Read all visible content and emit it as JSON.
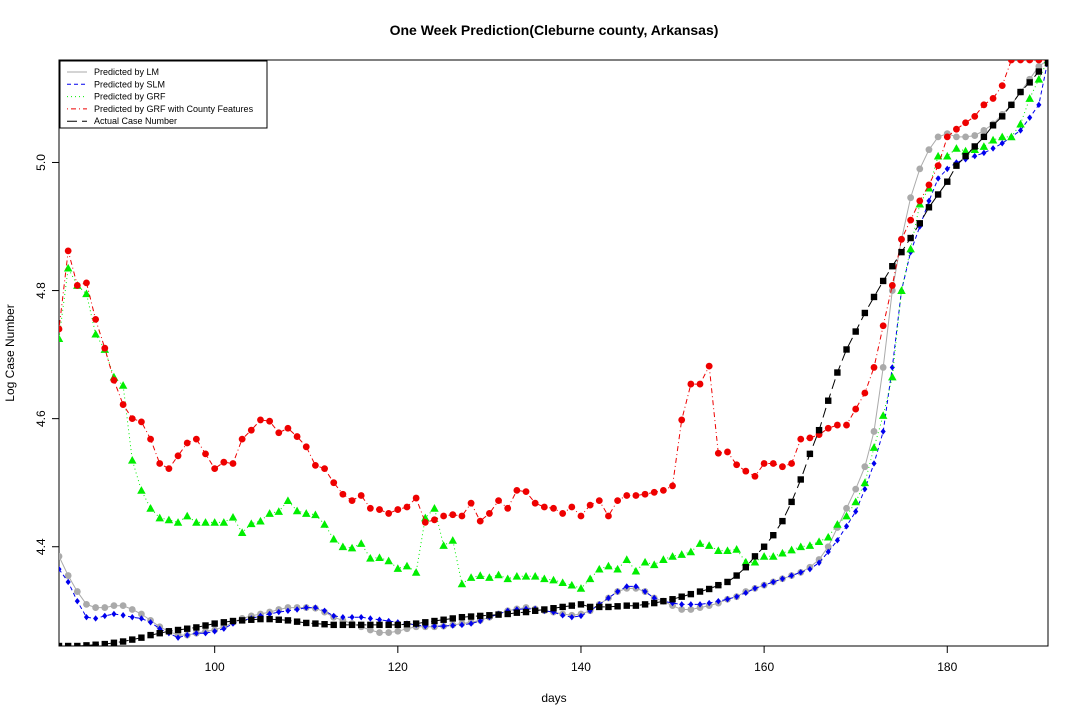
{
  "chart_data": {
    "type": "line",
    "title": "One Week Prediction(Cleburne county, Arkansas)",
    "xlabel": "days",
    "ylabel": "Log Case Number",
    "xlim": [
      83,
      191
    ],
    "ylim": [
      4.245,
      5.16
    ],
    "x_ticks": [
      100,
      120,
      140,
      160,
      180
    ],
    "y_ticks": [
      4.4,
      4.6,
      4.8,
      5.0
    ],
    "grid": false,
    "legend_position": "top-left",
    "x": [
      83,
      84,
      85,
      86,
      87,
      88,
      89,
      90,
      91,
      92,
      93,
      94,
      95,
      96,
      97,
      98,
      99,
      100,
      101,
      102,
      103,
      104,
      105,
      106,
      107,
      108,
      109,
      110,
      111,
      112,
      113,
      114,
      115,
      116,
      117,
      118,
      119,
      120,
      121,
      122,
      123,
      124,
      125,
      126,
      127,
      128,
      129,
      130,
      131,
      132,
      133,
      134,
      135,
      136,
      137,
      138,
      139,
      140,
      141,
      142,
      143,
      144,
      145,
      146,
      147,
      148,
      149,
      150,
      151,
      152,
      153,
      154,
      155,
      156,
      157,
      158,
      159,
      160,
      161,
      162,
      163,
      164,
      165,
      166,
      167,
      168,
      169,
      170,
      171,
      172,
      173,
      174,
      175,
      176,
      177,
      178,
      179,
      180,
      181,
      182,
      183,
      184,
      185,
      186,
      187,
      188,
      189,
      190,
      191
    ],
    "series": [
      {
        "name": "Predicted by LM",
        "color": "#aaaaaa",
        "line": "solid",
        "marker": "circle",
        "values": [
          4.385,
          4.355,
          4.33,
          4.31,
          4.305,
          4.305,
          4.308,
          4.308,
          4.302,
          4.295,
          4.285,
          4.275,
          4.268,
          4.262,
          4.262,
          4.265,
          4.268,
          4.27,
          4.275,
          4.282,
          4.288,
          4.292,
          4.295,
          4.298,
          4.302,
          4.305,
          4.305,
          4.305,
          4.304,
          4.298,
          4.29,
          4.285,
          4.28,
          4.275,
          4.27,
          4.266,
          4.266,
          4.268,
          4.272,
          4.275,
          4.275,
          4.275,
          4.276,
          4.278,
          4.28,
          4.282,
          4.285,
          4.29,
          4.295,
          4.3,
          4.303,
          4.305,
          4.303,
          4.3,
          4.298,
          4.295,
          4.293,
          4.295,
          4.3,
          4.31,
          4.32,
          4.33,
          4.335,
          4.335,
          4.33,
          4.32,
          4.315,
          4.308,
          4.302,
          4.302,
          4.305,
          4.308,
          4.312,
          4.318,
          4.322,
          4.33,
          4.335,
          4.34,
          4.345,
          4.35,
          4.355,
          4.36,
          4.368,
          4.38,
          4.4,
          4.43,
          4.46,
          4.49,
          4.525,
          4.58,
          4.68,
          4.8,
          4.88,
          4.945,
          4.99,
          5.02,
          5.04,
          5.045,
          5.04,
          5.04,
          5.042,
          5.05,
          5.06,
          5.075,
          5.09,
          5.11,
          5.13,
          5.15,
          5.16
        ]
      },
      {
        "name": "Predicted by SLM",
        "color": "#0000ee",
        "line": "dashed",
        "marker": "diamond",
        "values": [
          4.365,
          4.345,
          4.315,
          4.29,
          4.288,
          4.292,
          4.295,
          4.293,
          4.29,
          4.288,
          4.282,
          4.272,
          4.265,
          4.258,
          4.262,
          4.265,
          4.265,
          4.268,
          4.272,
          4.28,
          4.285,
          4.288,
          4.292,
          4.295,
          4.298,
          4.3,
          4.302,
          4.305,
          4.305,
          4.3,
          4.292,
          4.29,
          4.29,
          4.29,
          4.288,
          4.286,
          4.284,
          4.282,
          4.28,
          4.278,
          4.276,
          4.276,
          4.276,
          4.277,
          4.278,
          4.28,
          4.284,
          4.29,
          4.295,
          4.3,
          4.302,
          4.303,
          4.303,
          4.3,
          4.298,
          4.293,
          4.29,
          4.292,
          4.3,
          4.31,
          4.32,
          4.33,
          4.338,
          4.338,
          4.33,
          4.32,
          4.315,
          4.312,
          4.31,
          4.31,
          4.31,
          4.312,
          4.315,
          4.318,
          4.322,
          4.328,
          4.335,
          4.34,
          4.345,
          4.35,
          4.355,
          4.36,
          4.365,
          4.375,
          4.392,
          4.41,
          4.432,
          4.455,
          4.49,
          4.53,
          4.58,
          4.68,
          4.8,
          4.86,
          4.9,
          4.94,
          4.975,
          4.99,
          5.0,
          5.005,
          5.01,
          5.015,
          5.022,
          5.03,
          5.04,
          5.05,
          5.07,
          5.09,
          5.16
        ]
      },
      {
        "name": "Predicted by GRF",
        "color": "#00ee00",
        "line": "dotted",
        "marker": "triangle",
        "values": [
          4.725,
          4.835,
          4.808,
          4.795,
          4.732,
          4.708,
          4.665,
          4.652,
          4.535,
          4.488,
          4.46,
          4.445,
          4.442,
          4.438,
          4.448,
          4.438,
          4.438,
          4.438,
          4.438,
          4.446,
          4.422,
          4.436,
          4.44,
          4.452,
          4.455,
          4.472,
          4.456,
          4.452,
          4.45,
          4.435,
          4.412,
          4.4,
          4.398,
          4.405,
          4.382,
          4.383,
          4.378,
          4.366,
          4.37,
          4.36,
          4.445,
          4.46,
          4.402,
          4.41,
          4.342,
          4.352,
          4.355,
          4.352,
          4.356,
          4.35,
          4.354,
          4.354,
          4.354,
          4.35,
          4.348,
          4.344,
          4.34,
          4.335,
          4.35,
          4.365,
          4.37,
          4.365,
          4.38,
          4.362,
          4.376,
          4.372,
          4.38,
          4.385,
          4.388,
          4.392,
          4.405,
          4.402,
          4.394,
          4.394,
          4.396,
          4.376,
          4.376,
          4.385,
          4.385,
          4.39,
          4.395,
          4.4,
          4.402,
          4.408,
          4.415,
          4.435,
          4.448,
          4.47,
          4.5,
          4.555,
          4.605,
          4.665,
          4.8,
          4.865,
          4.935,
          4.96,
          5.01,
          5.01,
          5.022,
          5.018,
          5.02,
          5.025,
          5.035,
          5.04,
          5.04,
          5.06,
          5.1,
          5.13,
          5.16
        ]
      },
      {
        "name": "Predicted by GRF with County Features",
        "color": "#ee0000",
        "line": "dotdash",
        "marker": "circle",
        "values": [
          4.74,
          4.862,
          4.808,
          4.812,
          4.755,
          4.71,
          4.66,
          4.622,
          4.6,
          4.595,
          4.568,
          4.53,
          4.522,
          4.542,
          4.562,
          4.568,
          4.545,
          4.522,
          4.532,
          4.53,
          4.568,
          4.582,
          4.598,
          4.596,
          4.578,
          4.585,
          4.572,
          4.556,
          4.527,
          4.522,
          4.5,
          4.482,
          4.472,
          4.48,
          4.46,
          4.458,
          4.452,
          4.458,
          4.462,
          4.476,
          4.438,
          4.442,
          4.448,
          4.45,
          4.448,
          4.468,
          4.44,
          4.452,
          4.472,
          4.46,
          4.488,
          4.486,
          4.468,
          4.462,
          4.46,
          4.452,
          4.462,
          4.448,
          4.465,
          4.472,
          4.448,
          4.472,
          4.48,
          4.48,
          4.482,
          4.485,
          4.488,
          4.495,
          4.598,
          4.654,
          4.654,
          4.682,
          4.546,
          4.548,
          4.528,
          4.518,
          4.51,
          4.53,
          4.53,
          4.525,
          4.53,
          4.568,
          4.57,
          4.575,
          4.585,
          4.59,
          4.59,
          4.615,
          4.64,
          4.68,
          4.745,
          4.808,
          4.88,
          4.91,
          4.94,
          4.965,
          4.995,
          5.04,
          5.052,
          5.062,
          5.072,
          5.09,
          5.1,
          5.12,
          5.16,
          5.16,
          5.16,
          5.16,
          5.16
        ]
      },
      {
        "name": "Actual Case Number",
        "color": "#000000",
        "line": "longdash",
        "marker": "square",
        "values": [
          4.245,
          4.245,
          4.245,
          4.246,
          4.247,
          4.248,
          4.25,
          4.252,
          4.255,
          4.258,
          4.262,
          4.265,
          4.268,
          4.27,
          4.272,
          4.274,
          4.277,
          4.28,
          4.282,
          4.284,
          4.285,
          4.286,
          4.287,
          4.287,
          4.286,
          4.285,
          4.283,
          4.281,
          4.28,
          4.279,
          4.278,
          4.278,
          4.278,
          4.278,
          4.278,
          4.278,
          4.278,
          4.278,
          4.279,
          4.28,
          4.282,
          4.284,
          4.286,
          4.288,
          4.29,
          4.291,
          4.292,
          4.293,
          4.294,
          4.295,
          4.297,
          4.298,
          4.3,
          4.302,
          4.304,
          4.306,
          4.308,
          4.31,
          4.306,
          4.306,
          4.306,
          4.307,
          4.308,
          4.308,
          4.31,
          4.312,
          4.315,
          4.318,
          4.322,
          4.326,
          4.33,
          4.334,
          4.34,
          4.345,
          4.355,
          4.368,
          4.385,
          4.4,
          4.418,
          4.44,
          4.47,
          4.505,
          4.545,
          4.582,
          4.628,
          4.672,
          4.708,
          4.736,
          4.765,
          4.79,
          4.815,
          4.838,
          4.86,
          4.882,
          4.905,
          4.93,
          4.95,
          4.97,
          4.995,
          5.01,
          5.025,
          5.04,
          5.058,
          5.072,
          5.09,
          5.11,
          5.125,
          5.142,
          5.155
        ]
      }
    ]
  }
}
